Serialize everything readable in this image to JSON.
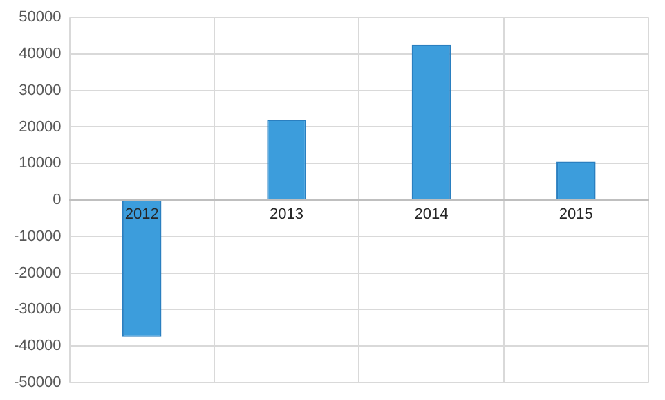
{
  "chart_data": {
    "type": "bar",
    "categories": [
      "2012",
      "2013",
      "2014",
      "2015"
    ],
    "values": [
      -37500,
      22000,
      42500,
      10500
    ],
    "color": "#3c9ddc",
    "ylim": [
      -50000,
      50000
    ],
    "yticks": [
      -50000,
      -40000,
      -30000,
      -20000,
      -10000,
      0,
      10000,
      20000,
      30000,
      40000,
      50000
    ],
    "grid": true
  }
}
